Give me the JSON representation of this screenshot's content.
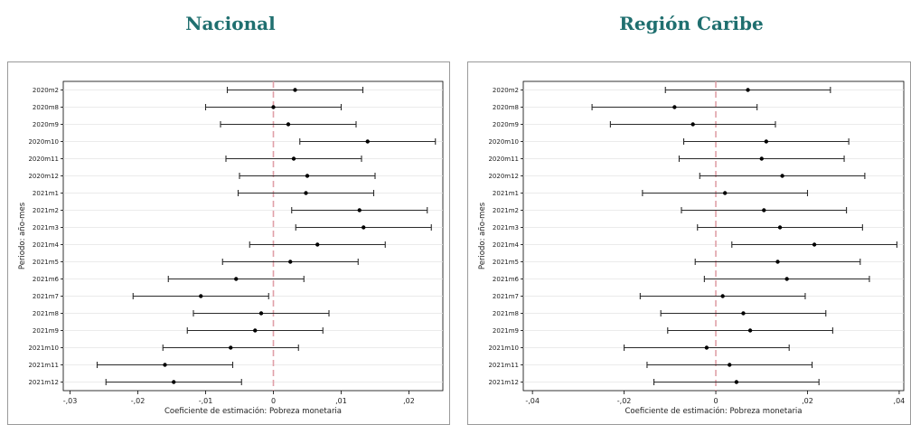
{
  "chart_data": [
    {
      "type": "coefficient_plot",
      "title": "Nacional",
      "xlabel": "Coeficiente de estimación: Pobreza monetaria",
      "ylabel": "Periodo: año-mes",
      "xlim": [
        -0.031,
        0.025
      ],
      "xticks": [
        -0.03,
        -0.02,
        -0.01,
        0,
        0.01,
        0.02
      ],
      "xtick_labels": [
        "-,03",
        "-,02",
        "-,01",
        "0",
        ",01",
        ",02"
      ],
      "reference_line": 0,
      "categories": [
        "2020m2",
        "2020m8",
        "2020m9",
        "2020m10",
        "2020m11",
        "2020m12",
        "2021m1",
        "2021m2",
        "2021m3",
        "2021m4",
        "2021m5",
        "2021m6",
        "2021m7",
        "2021m8",
        "2021m9",
        "2021m10",
        "2021m11",
        "2021m12"
      ],
      "estimate": [
        0.0032,
        0.0,
        0.0022,
        0.0139,
        0.003,
        0.005,
        0.0048,
        0.0127,
        0.0133,
        0.0065,
        0.0025,
        -0.0055,
        -0.0107,
        -0.0018,
        -0.0027,
        -0.0063,
        -0.016,
        -0.0147
      ],
      "lower": [
        -0.0068,
        -0.01,
        -0.0078,
        0.0039,
        -0.007,
        -0.005,
        -0.0052,
        0.0027,
        0.0033,
        -0.0035,
        -0.0075,
        -0.0155,
        -0.0207,
        -0.0118,
        -0.0127,
        -0.0163,
        -0.026,
        -0.0247
      ],
      "upper": [
        0.0132,
        0.01,
        0.0122,
        0.0239,
        0.013,
        0.015,
        0.0148,
        0.0227,
        0.0233,
        0.0165,
        0.0125,
        0.0045,
        -0.0007,
        0.0082,
        0.0073,
        0.0037,
        -0.006,
        -0.0047
      ]
    },
    {
      "type": "coefficient_plot",
      "title": "Región Caribe",
      "xlabel": "Coeficiente de estimación: Pobreza monetaria",
      "ylabel": "Periodo: año-mes",
      "xlim": [
        -0.042,
        0.041
      ],
      "xticks": [
        -0.04,
        -0.02,
        0,
        0.02,
        0.04
      ],
      "xtick_labels": [
        "-,04",
        "-,02",
        "0",
        ",02",
        ",04"
      ],
      "reference_line": 0,
      "categories": [
        "2020m2",
        "2020m8",
        "2020m9",
        "2020m10",
        "2020m11",
        "2020m12",
        "2021m1",
        "2021m2",
        "2021m3",
        "2021m4",
        "2021m5",
        "2021m6",
        "2021m7",
        "2021m8",
        "2021m9",
        "2021m10",
        "2021m11",
        "2021m12"
      ],
      "estimate": [
        0.007,
        -0.009,
        -0.005,
        0.011,
        0.01,
        0.0145,
        0.002,
        0.0105,
        0.014,
        0.0215,
        0.0135,
        0.0155,
        0.0015,
        0.006,
        0.0075,
        -0.002,
        0.003,
        0.0045
      ],
      "lower": [
        -0.011,
        -0.027,
        -0.023,
        -0.007,
        -0.008,
        -0.0035,
        -0.016,
        -0.0075,
        -0.004,
        0.0035,
        -0.0045,
        -0.0025,
        -0.0165,
        -0.012,
        -0.0105,
        -0.02,
        -0.015,
        -0.0135
      ],
      "upper": [
        0.025,
        0.009,
        0.013,
        0.029,
        0.028,
        0.0325,
        0.02,
        0.0285,
        0.032,
        0.0395,
        0.0315,
        0.0335,
        0.0195,
        0.024,
        0.0255,
        0.016,
        0.021,
        0.0225
      ]
    }
  ]
}
